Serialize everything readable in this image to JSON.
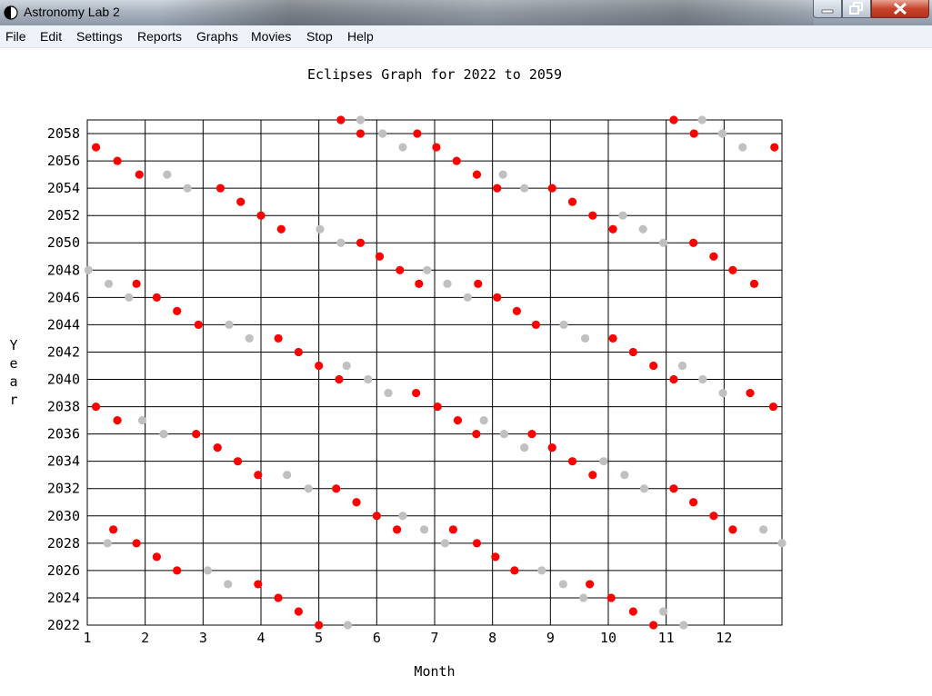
{
  "window": {
    "title": "Astronomy Lab 2"
  },
  "menu": [
    "File",
    "Edit",
    "Settings",
    "Reports",
    "Graphs",
    "Movies",
    "Stop",
    "Help"
  ],
  "chart_data": {
    "type": "scatter",
    "title": "Eclipses Graph for 2022 to 2059",
    "xlabel": "Month",
    "ylabel": "Year",
    "xlim": [
      1,
      13
    ],
    "ylim": [
      2022,
      2059
    ],
    "xticks": [
      "1",
      "2",
      "3",
      "4",
      "5",
      "6",
      "7",
      "8",
      "9",
      "10",
      "11",
      "12"
    ],
    "yticks": [
      "2022",
      "2024",
      "2026",
      "2028",
      "2030",
      "2032",
      "2034",
      "2036",
      "2038",
      "2040",
      "2042",
      "2044",
      "2046",
      "2048",
      "2050",
      "2052",
      "2054",
      "2056",
      "2058"
    ],
    "grid": true,
    "colors": {
      "solar": "#ff0000",
      "lunar": "#c0c0c0"
    },
    "series": [
      {
        "color": "#ff0000",
        "points": [
          [
            1.15,
            2057
          ],
          [
            1.52,
            2056
          ],
          [
            1.9,
            2055
          ],
          [
            3.3,
            2054
          ],
          [
            3.65,
            2053
          ],
          [
            4.0,
            2052
          ],
          [
            4.35,
            2051
          ],
          [
            5.38,
            2059
          ],
          [
            5.72,
            2058
          ],
          [
            6.7,
            2058
          ],
          [
            7.03,
            2057
          ],
          [
            7.38,
            2056
          ],
          [
            7.73,
            2055
          ],
          [
            8.08,
            2054
          ],
          [
            9.03,
            2054
          ],
          [
            9.38,
            2053
          ],
          [
            9.73,
            2052
          ],
          [
            10.08,
            2051
          ],
          [
            11.13,
            2059
          ],
          [
            11.48,
            2058
          ],
          [
            12.87,
            2057
          ],
          [
            5.72,
            2050
          ],
          [
            6.05,
            2049
          ],
          [
            6.4,
            2048
          ],
          [
            6.73,
            2047
          ],
          [
            1.85,
            2047
          ],
          [
            2.2,
            2046
          ],
          [
            2.55,
            2045
          ],
          [
            2.92,
            2044
          ],
          [
            4.3,
            2043
          ],
          [
            4.65,
            2042
          ],
          [
            5.0,
            2041
          ],
          [
            5.35,
            2040
          ],
          [
            6.68,
            2039
          ],
          [
            7.05,
            2038
          ],
          [
            7.75,
            2047
          ],
          [
            8.08,
            2046
          ],
          [
            8.42,
            2045
          ],
          [
            8.75,
            2044
          ],
          [
            10.08,
            2043
          ],
          [
            10.43,
            2042
          ],
          [
            10.78,
            2041
          ],
          [
            11.13,
            2040
          ],
          [
            11.47,
            2050
          ],
          [
            11.82,
            2049
          ],
          [
            12.15,
            2048
          ],
          [
            12.52,
            2047
          ],
          [
            12.45,
            2039
          ],
          [
            12.85,
            2038
          ],
          [
            1.15,
            2038
          ],
          [
            1.52,
            2037
          ],
          [
            2.88,
            2036
          ],
          [
            3.25,
            2035
          ],
          [
            3.6,
            2034
          ],
          [
            3.95,
            2033
          ],
          [
            5.3,
            2032
          ],
          [
            5.65,
            2031
          ],
          [
            6.0,
            2030
          ],
          [
            6.35,
            2029
          ],
          [
            7.4,
            2037
          ],
          [
            7.72,
            2036
          ],
          [
            8.68,
            2036
          ],
          [
            9.03,
            2035
          ],
          [
            9.38,
            2034
          ],
          [
            9.73,
            2033
          ],
          [
            11.13,
            2032
          ],
          [
            11.47,
            2031
          ],
          [
            11.82,
            2030
          ],
          [
            12.15,
            2029
          ],
          [
            1.45,
            2029
          ],
          [
            1.85,
            2028
          ],
          [
            2.2,
            2027
          ],
          [
            2.55,
            2026
          ],
          [
            3.95,
            2025
          ],
          [
            4.3,
            2024
          ],
          [
            4.65,
            2023
          ],
          [
            5.0,
            2022
          ],
          [
            7.32,
            2029
          ],
          [
            7.73,
            2028
          ],
          [
            8.05,
            2027
          ],
          [
            8.38,
            2026
          ],
          [
            9.68,
            2025
          ],
          [
            10.05,
            2024
          ],
          [
            10.43,
            2023
          ],
          [
            10.78,
            2022
          ]
        ]
      },
      {
        "color": "#c0c0c0",
        "points": [
          [
            2.38,
            2055
          ],
          [
            2.73,
            2054
          ],
          [
            5.72,
            2059
          ],
          [
            6.1,
            2058
          ],
          [
            6.45,
            2057
          ],
          [
            8.18,
            2055
          ],
          [
            8.55,
            2054
          ],
          [
            10.25,
            2052
          ],
          [
            10.6,
            2051
          ],
          [
            10.95,
            2050
          ],
          [
            11.62,
            2059
          ],
          [
            11.97,
            2058
          ],
          [
            12.32,
            2057
          ],
          [
            5.02,
            2051
          ],
          [
            5.38,
            2050
          ],
          [
            1.02,
            2048
          ],
          [
            1.37,
            2047
          ],
          [
            1.72,
            2046
          ],
          [
            3.45,
            2044
          ],
          [
            3.8,
            2043
          ],
          [
            5.48,
            2041
          ],
          [
            5.85,
            2040
          ],
          [
            6.2,
            2039
          ],
          [
            6.87,
            2048
          ],
          [
            7.22,
            2047
          ],
          [
            7.57,
            2046
          ],
          [
            9.23,
            2044
          ],
          [
            9.6,
            2043
          ],
          [
            11.28,
            2041
          ],
          [
            11.63,
            2040
          ],
          [
            11.98,
            2039
          ],
          [
            1.95,
            2037
          ],
          [
            2.32,
            2036
          ],
          [
            4.45,
            2033
          ],
          [
            4.82,
            2032
          ],
          [
            6.45,
            2030
          ],
          [
            6.82,
            2029
          ],
          [
            7.85,
            2037
          ],
          [
            8.2,
            2036
          ],
          [
            8.55,
            2035
          ],
          [
            9.92,
            2034
          ],
          [
            10.28,
            2033
          ],
          [
            10.62,
            2032
          ],
          [
            12.68,
            2029
          ],
          [
            13.0,
            2028
          ],
          [
            1.35,
            2028
          ],
          [
            3.08,
            2026
          ],
          [
            3.43,
            2025
          ],
          [
            5.5,
            2022
          ],
          [
            7.18,
            2028
          ],
          [
            8.85,
            2026
          ],
          [
            9.22,
            2025
          ],
          [
            9.57,
            2024
          ],
          [
            10.95,
            2023
          ],
          [
            11.3,
            2022
          ]
        ]
      }
    ]
  }
}
